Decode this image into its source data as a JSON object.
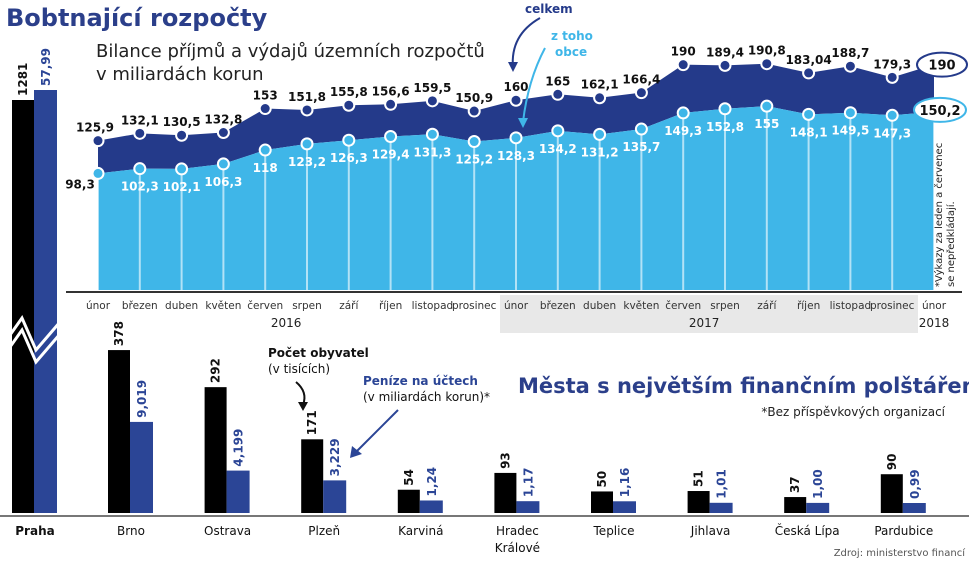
{
  "title": "Bobtnající rozpočty",
  "subtitle_line1": "Bilance příjmů a výdajů územních rozpočtů",
  "subtitle_line2": "v miliardách korun",
  "legend_total": "celkem",
  "legend_municipal_line1": "z toho",
  "legend_municipal_line2": "obce",
  "footnote_line1": "*Výkazy za leden a červenec",
  "footnote_line2": "se nepředkládají.",
  "colors": {
    "total": "#243a8a",
    "municipal": "#3fb6e8",
    "population": "#000000",
    "money": "#2b4596",
    "title": "#2b3f8a"
  },
  "chart_data": [
    {
      "type": "area",
      "title": "Bobtnající rozpočty",
      "subtitle": "Bilance příjmů a výdajů územních rozpočtů v miliardách korun",
      "categories": [
        "únor",
        "březen",
        "duben",
        "květen",
        "červen",
        "srpen",
        "září",
        "říjen",
        "listopad",
        "prosinec",
        "únor",
        "březen",
        "duben",
        "květen",
        "červen",
        "srpen",
        "září",
        "říjen",
        "listopad",
        "prosinec",
        "únor"
      ],
      "years": [
        {
          "label": "2016",
          "from": 0,
          "to": 9
        },
        {
          "label": "2017",
          "from": 10,
          "to": 19
        },
        {
          "label": "2018",
          "from": 20,
          "to": 20
        }
      ],
      "series": [
        {
          "name": "celkem",
          "values": [
            125.9,
            132.1,
            130.5,
            132.8,
            153,
            151.8,
            155.8,
            156.6,
            159.5,
            150.9,
            160,
            165,
            162.1,
            166.4,
            190,
            189.4,
            190.8,
            183.04,
            188.7,
            179.3,
            190
          ],
          "labels": [
            "125,9",
            "132,1",
            "130,5",
            "132,8",
            "153",
            "151,8",
            "155,8",
            "156,6",
            "159,5",
            "150,9",
            "160",
            "165",
            "162,1",
            "166,4",
            "190",
            "189,4",
            "190,8",
            "183,04",
            "188,7",
            "179,3",
            "190"
          ]
        },
        {
          "name": "z toho obce",
          "values": [
            98.3,
            102.3,
            102.1,
            106.3,
            118,
            123.2,
            126.3,
            129.4,
            131.3,
            125.2,
            128.3,
            134.2,
            131.2,
            135.7,
            149.3,
            152.8,
            155,
            148.1,
            149.5,
            147.3,
            150.2
          ],
          "labels": [
            "98,3",
            "102,3",
            "102,1",
            "106,3",
            "118",
            "123,2",
            "126,3",
            "129,4",
            "131,3",
            "125,2",
            "128,3",
            "134,2",
            "131,2",
            "135,7",
            "149,3",
            "152,8",
            "155",
            "148,1",
            "149,5",
            "147,3",
            "150,2"
          ]
        }
      ],
      "ylim": [
        0,
        190.8
      ]
    },
    {
      "type": "bar",
      "title": "Města s největším finančním polštářem",
      "note": "*Bez příspěvkových organizací",
      "categories": [
        "Praha",
        "Brno",
        "Ostrava",
        "Plzeň",
        "Karviná",
        "Hradec Králové",
        "Teplice",
        "Jihlava",
        "Česká Lípa",
        "Pardubice"
      ],
      "series": [
        {
          "name": "Počet obyvatel (v tisících)",
          "values": [
            1281,
            378,
            292,
            171,
            54,
            93,
            50,
            51,
            37,
            90
          ],
          "labels": [
            "1281",
            "378",
            "292",
            "171",
            "54",
            "93",
            "50",
            "51",
            "37",
            "90"
          ]
        },
        {
          "name": "Peníze na účtech (v miliardách korun)*",
          "values": [
            57.99,
            9.019,
            4.199,
            3.229,
            1.24,
            1.17,
            1.16,
            1.01,
            1.0,
            0.99
          ],
          "labels": [
            "57,99",
            "9,019",
            "4,199",
            "3,229",
            "1,24",
            "1,17",
            "1,16",
            "1,01",
            "1,00",
            "0,99"
          ]
        }
      ],
      "axis_break": "Praha"
    }
  ],
  "bars": {
    "title": "Města s největším finančním polštářem",
    "note": "*Bez příspěvkových organizací",
    "pop_label": "Počet obyvatel",
    "pop_unit": "(v tisících)",
    "money_label": "Peníze na účtech",
    "money_unit": "(v miliardách korun)*",
    "city_line2_hradec": "Králové"
  },
  "source": "Zdroj: ministerstvo financí"
}
